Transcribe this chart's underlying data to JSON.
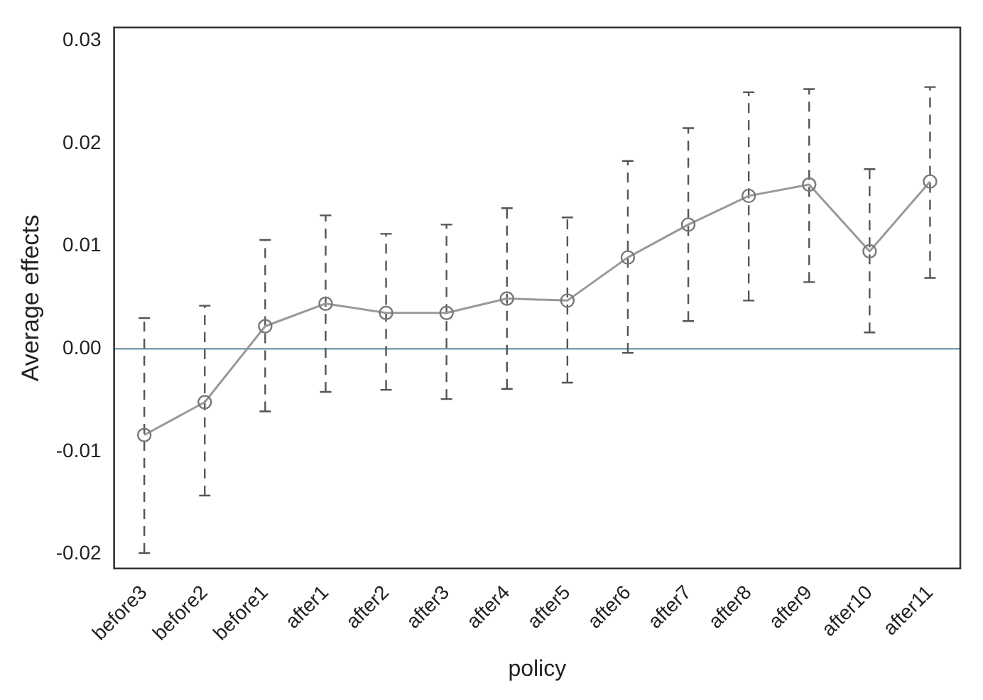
{
  "chart_data": {
    "type": "line",
    "xlabel": "policy",
    "ylabel": "Average effects",
    "categories": [
      "before3",
      "before2",
      "before1",
      "after1",
      "after2",
      "after3",
      "after4",
      "after5",
      "after6",
      "after7",
      "after8",
      "after9",
      "after10",
      "after11"
    ],
    "series": [
      {
        "color": "#999999",
        "values": [
          -0.0084,
          -0.0052,
          0.0022,
          0.0044,
          0.0035,
          0.0035,
          0.0049,
          0.0047,
          0.0089,
          0.0121,
          0.0149,
          0.016,
          0.0095,
          0.0163
        ],
        "errors": [
          [
            -0.0199,
            0.003
          ],
          [
            -0.0143,
            0.0042
          ],
          [
            -0.0061,
            0.0106
          ],
          [
            -0.0042,
            0.013
          ],
          [
            -0.004,
            0.0112
          ],
          [
            -0.0049,
            0.0121
          ],
          [
            -0.0039,
            0.0137
          ],
          [
            -0.0033,
            0.0128
          ],
          [
            -0.0004,
            0.0183
          ],
          [
            0.0027,
            0.0215
          ],
          [
            0.0047,
            0.025
          ],
          [
            0.0065,
            0.0253
          ],
          [
            0.0016,
            0.0175
          ],
          [
            0.0069,
            0.0255
          ]
        ]
      }
    ],
    "ylim": [
      -0.0214,
      0.0313
    ],
    "yticks": [
      {
        "value": -0.02,
        "label": "-0.02"
      },
      {
        "value": -0.01,
        "label": "-0.01"
      },
      {
        "value": 0,
        "label": "0.00"
      },
      {
        "value": 0.01,
        "label": "0.01"
      },
      {
        "value": 0.02,
        "label": "0.02"
      },
      {
        "value": 0.03,
        "label": "0.03"
      }
    ],
    "ref_lines": [
      {
        "axis": "y",
        "value": 0,
        "color": "#7f9fb2"
      }
    ],
    "grid": false,
    "legend": false,
    "marker": "circle",
    "line_style": "solid"
  }
}
